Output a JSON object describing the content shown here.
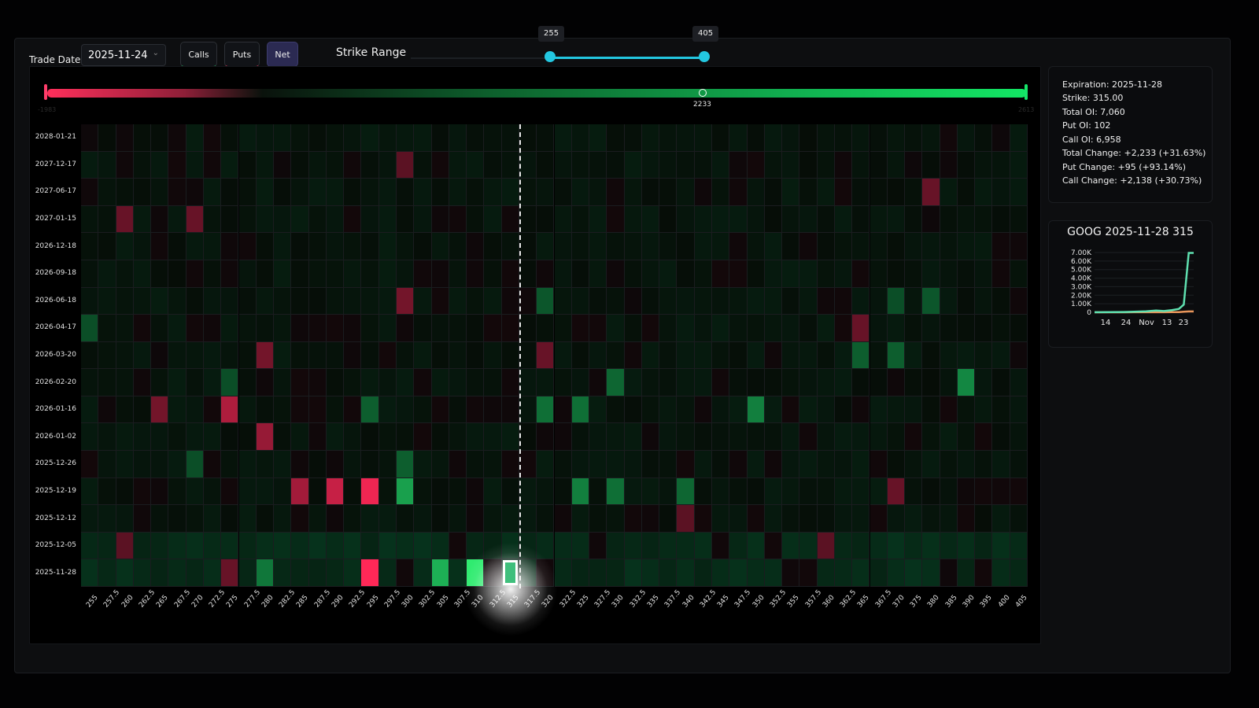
{
  "toolbar": {
    "trade_date_label": "Trade Date:",
    "trade_date_value": "2025-11-24",
    "calls_label": "Calls",
    "puts_label": "Puts",
    "net_label": "Net",
    "strike_range_label": "Strike Range",
    "strike_range_min": "255",
    "strike_range_max": "405"
  },
  "colorbar": {
    "min_label": "-1983",
    "mid_label": "2233",
    "max_label": "2613"
  },
  "info": {
    "expiration": "Expiration: 2025-11-28",
    "strike": "Strike: 315.00",
    "total_oi": "Total OI: 7,060",
    "put_oi": "Put OI: 102",
    "call_oi": "Call OI: 6,958",
    "total_change": "Total Change: +2,233 (+31.63%)",
    "put_change": "Put Change: +95 (+93.14%)",
    "call_change": "Call Change: +2,138 (+30.73%)"
  },
  "mini_chart": {
    "title": "GOOG 2025-11-28 315",
    "y_ticks": [
      "7.00K",
      "6.00K",
      "5.00K",
      "4.00K",
      "3.00K",
      "2.00K",
      "1.00K",
      "0"
    ],
    "x_ticks": [
      "14",
      "24",
      "Nov",
      "13",
      "23"
    ],
    "call_series": [
      10,
      20,
      40,
      60,
      120,
      200,
      150,
      260,
      400,
      900,
      6958,
      6958
    ],
    "put_series": [
      0,
      0,
      0,
      5,
      5,
      10,
      10,
      20,
      30,
      60,
      102,
      102
    ],
    "colors": {
      "call": "#5fe0b0",
      "put": "#e8955a"
    }
  },
  "chart_data": {
    "type": "heatmap",
    "x_label": "",
    "y_label": "",
    "strikes": [
      "255",
      "257.5",
      "260",
      "262.5",
      "265",
      "267.5",
      "270",
      "272.5",
      "275",
      "277.5",
      "280",
      "282.5",
      "285",
      "287.5",
      "290",
      "292.5",
      "295",
      "297.5",
      "300",
      "302.5",
      "305",
      "307.5",
      "310",
      "312.5",
      "315",
      "317.5",
      "320",
      "322.5",
      "325",
      "327.5",
      "330",
      "332.5",
      "335",
      "337.5",
      "340",
      "342.5",
      "345",
      "347.5",
      "350",
      "352.5",
      "355",
      "357.5",
      "360",
      "362.5",
      "365",
      "367.5",
      "370",
      "375",
      "380",
      "385",
      "390",
      "395",
      "400",
      "405"
    ],
    "expirations": [
      "2028-01-21",
      "2027-12-17",
      "2027-06-17",
      "2027-01-15",
      "2026-12-18",
      "2026-09-18",
      "2026-06-18",
      "2026-04-17",
      "2026-03-20",
      "2026-02-20",
      "2026-01-16",
      "2026-01-02",
      "2025-12-26",
      "2025-12-19",
      "2025-12-12",
      "2025-12-05",
      "2025-11-28"
    ],
    "color_scale": {
      "min": -1983,
      "mid": 2233,
      "max": 2613,
      "neg_color": "#ff3d6a",
      "pos_color": "#1ef07a"
    },
    "highlight": {
      "expiration": "2025-11-28",
      "strike": "315",
      "value": 2233
    },
    "current_price_between": [
      "315",
      "317.5"
    ],
    "hot_cells": [
      {
        "e": "2025-11-28",
        "s": "295",
        "v": -1983
      },
      {
        "e": "2025-11-28",
        "s": "305",
        "v": 1900
      },
      {
        "e": "2025-11-28",
        "s": "310",
        "v": 2613
      },
      {
        "e": "2025-11-28",
        "s": "280",
        "v": 1200
      },
      {
        "e": "2025-11-28",
        "s": "275",
        "v": -700
      },
      {
        "e": "2025-12-19",
        "s": "285",
        "v": -1200
      },
      {
        "e": "2025-12-19",
        "s": "290",
        "v": -1500
      },
      {
        "e": "2025-12-19",
        "s": "295",
        "v": -1850
      },
      {
        "e": "2025-12-19",
        "s": "300",
        "v": 1700
      },
      {
        "e": "2025-12-19",
        "s": "325",
        "v": 1300
      },
      {
        "e": "2025-12-19",
        "s": "330",
        "v": 1100
      },
      {
        "e": "2025-12-19",
        "s": "340",
        "v": 1000
      },
      {
        "e": "2025-12-19",
        "s": "370",
        "v": -700
      },
      {
        "e": "2026-01-16",
        "s": "275",
        "v": -1300
      },
      {
        "e": "2026-01-16",
        "s": "265",
        "v": -800
      },
      {
        "e": "2026-01-16",
        "s": "295",
        "v": 900
      },
      {
        "e": "2026-01-16",
        "s": "320",
        "v": 1100
      },
      {
        "e": "2026-01-16",
        "s": "325",
        "v": 1100
      },
      {
        "e": "2026-01-16",
        "s": "350",
        "v": 1300
      },
      {
        "e": "2026-01-02",
        "s": "280",
        "v": -1100
      },
      {
        "e": "2026-02-20",
        "s": "330",
        "v": 1000
      },
      {
        "e": "2026-02-20",
        "s": "390",
        "v": 1400
      },
      {
        "e": "2026-02-20",
        "s": "275",
        "v": 700
      },
      {
        "e": "2026-03-20",
        "s": "280",
        "v": -800
      },
      {
        "e": "2026-03-20",
        "s": "320",
        "v": -700
      },
      {
        "e": "2026-03-20",
        "s": "365",
        "v": 900
      },
      {
        "e": "2026-03-20",
        "s": "370",
        "v": 900
      },
      {
        "e": "2026-06-18",
        "s": "300",
        "v": -800
      },
      {
        "e": "2026-06-18",
        "s": "320",
        "v": 800
      },
      {
        "e": "2026-06-18",
        "s": "380",
        "v": 800
      },
      {
        "e": "2026-06-18",
        "s": "370",
        "v": 700
      },
      {
        "e": "2025-12-26",
        "s": "300",
        "v": 900
      },
      {
        "e": "2025-12-26",
        "s": "270",
        "v": 700
      },
      {
        "e": "2027-01-15",
        "s": "260",
        "v": -700
      },
      {
        "e": "2027-01-15",
        "s": "270",
        "v": -700
      },
      {
        "e": "2027-06-17",
        "s": "380",
        "v": -700
      },
      {
        "e": "2027-12-17",
        "s": "300",
        "v": -600
      },
      {
        "e": "2025-12-05",
        "s": "260",
        "v": -600
      },
      {
        "e": "2025-12-05",
        "s": "360",
        "v": -600
      },
      {
        "e": "2025-12-12",
        "s": "340",
        "v": -600
      },
      {
        "e": "2026-04-17",
        "s": "255",
        "v": 700
      },
      {
        "e": "2026-04-17",
        "s": "365",
        "v": -700
      }
    ]
  }
}
